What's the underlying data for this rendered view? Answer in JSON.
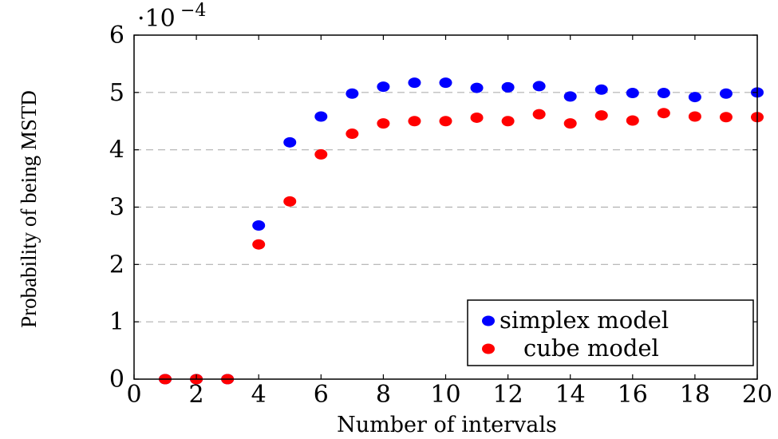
{
  "chart_data": {
    "type": "scatter",
    "title": "",
    "xlabel": "Number of intervals",
    "ylabel": "Probability of being MSTD",
    "y_multiplier": "·10",
    "y_multiplier_exp": "−4",
    "xlim": [
      0,
      20
    ],
    "ylim": [
      0,
      6
    ],
    "xticks": [
      "0",
      "2",
      "4",
      "6",
      "8",
      "10",
      "12",
      "14",
      "16",
      "18",
      "20"
    ],
    "yticks": [
      "0",
      "1",
      "2",
      "3",
      "4",
      "5",
      "6"
    ],
    "grid": "horizontal dashed",
    "legend_position": "bottom-right",
    "series": [
      {
        "name": "simplex model",
        "color": "#0000ff",
        "x": [
          1,
          2,
          3,
          4,
          5,
          6,
          7,
          8,
          9,
          10,
          11,
          12,
          13,
          14,
          15,
          16,
          17,
          18,
          19,
          20
        ],
        "values": [
          0,
          0,
          0,
          2.68,
          4.13,
          4.58,
          4.98,
          5.1,
          5.17,
          5.17,
          5.08,
          5.09,
          5.11,
          4.93,
          5.05,
          4.99,
          4.99,
          4.92,
          4.98,
          5.0
        ]
      },
      {
        "name": "cube model",
        "color": "#ff0000",
        "x": [
          1,
          2,
          3,
          4,
          5,
          6,
          7,
          8,
          9,
          10,
          11,
          12,
          13,
          14,
          15,
          16,
          17,
          18,
          19,
          20
        ],
        "values": [
          0,
          0,
          0,
          2.35,
          3.1,
          3.92,
          4.28,
          4.46,
          4.5,
          4.5,
          4.56,
          4.5,
          4.62,
          4.46,
          4.6,
          4.51,
          4.64,
          4.58,
          4.57,
          4.57
        ]
      }
    ]
  }
}
